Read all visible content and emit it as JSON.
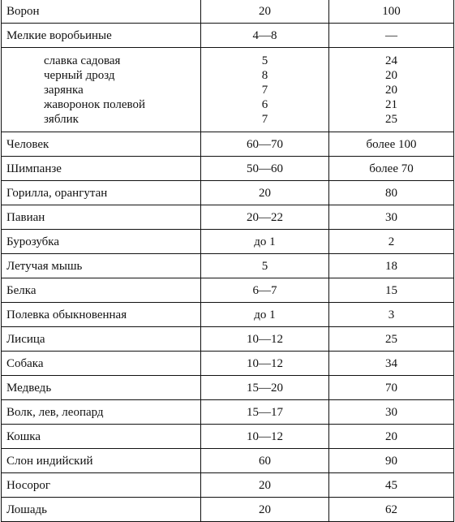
{
  "table": {
    "rows": [
      {
        "name": "Ворон",
        "avg": "20",
        "max": "100"
      },
      {
        "name": "Мелкие воробьиные",
        "avg": "4—8",
        "max": "—"
      },
      {
        "name": "Человек",
        "avg": "60—70",
        "max": "более 100"
      },
      {
        "name": "Шимпанзе",
        "avg": "50—60",
        "max": "более 70"
      },
      {
        "name": "Горилла, орангутан",
        "avg": "20",
        "max": "80"
      },
      {
        "name": "Павиан",
        "avg": "20—22",
        "max": "30"
      },
      {
        "name": "Бурозубка",
        "avg": "до 1",
        "max": "2"
      },
      {
        "name": "Летучая мышь",
        "avg": "5",
        "max": "18"
      },
      {
        "name": "Белка",
        "avg": "6—7",
        "max": "15"
      },
      {
        "name": "Полевка обыкновенная",
        "avg": "до 1",
        "max": "3"
      },
      {
        "name": "Лисица",
        "avg": "10—12",
        "max": "25"
      },
      {
        "name": "Собака",
        "avg": "10—12",
        "max": "34"
      },
      {
        "name": "Медведь",
        "avg": "15—20",
        "max": "70"
      },
      {
        "name": "Волк, лев, леопард",
        "avg": "15—17",
        "max": "30"
      },
      {
        "name": "Кошка",
        "avg": "10—12",
        "max": "20"
      },
      {
        "name": "Слон индийский",
        "avg": "60",
        "max": "90"
      },
      {
        "name": "Носорог",
        "avg": "20",
        "max": "45"
      },
      {
        "name": "Лошадь",
        "avg": "20",
        "max": "62"
      }
    ],
    "passerine_subitems": [
      {
        "name": "славка садовая",
        "avg": "5",
        "max": "24"
      },
      {
        "name": "черный дрозд",
        "avg": "8",
        "max": "20"
      },
      {
        "name": "зарянка",
        "avg": "7",
        "max": "20"
      },
      {
        "name": "жаворонок полевой",
        "avg": "6",
        "max": "21"
      },
      {
        "name": "зяблик",
        "avg": "7",
        "max": "25"
      }
    ]
  }
}
